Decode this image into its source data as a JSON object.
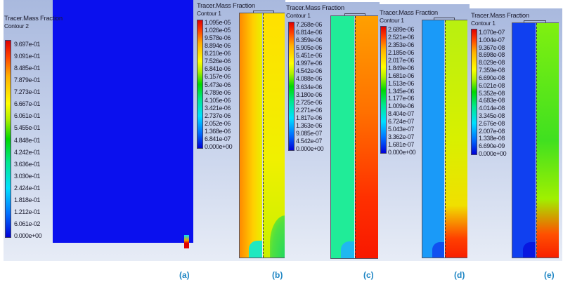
{
  "panels": [
    {
      "id": "a",
      "title": "Tracer.Mass Fraction",
      "contour": "Contour 2",
      "label": "(a)",
      "ticks": [
        "9.697e-01",
        "9.091e-01",
        "8.485e-01",
        "7.879e-01",
        "7.273e-01",
        "6.667e-01",
        "6.061e-01",
        "5.455e-01",
        "4.848e-01",
        "4.242e-01",
        "3.636e-01",
        "3.030e-01",
        "2.424e-01",
        "1.818e-01",
        "1.212e-01",
        "6.061e-02",
        "0.000e+00"
      ]
    },
    {
      "id": "b",
      "title": "Tracer.Mass Fraction",
      "contour": "Contour 1",
      "label": "(b)",
      "ticks": [
        "1.095e-05",
        "1.026e-05",
        "9.578e-06",
        "8.894e-06",
        "8.210e-06",
        "7.526e-06",
        "6.841e-06",
        "6.157e-06",
        "5.473e-06",
        "4.789e-06",
        "4.105e-06",
        "3.421e-06",
        "2.737e-06",
        "2.052e-06",
        "1.368e-06",
        "6.841e-07",
        "0.000e+00"
      ]
    },
    {
      "id": "c",
      "title": "Tracer.Mass Fraction",
      "contour": "Contour 1",
      "label": "(c)",
      "ticks": [
        "7.268e-06",
        "6.814e-06",
        "6.359e-06",
        "5.905e-06",
        "5.451e-06",
        "4.997e-06",
        "4.542e-06",
        "4.088e-06",
        "3.634e-06",
        "3.180e-06",
        "2.725e-06",
        "2.271e-06",
        "1.817e-06",
        "1.363e-06",
        "9.085e-07",
        "4.542e-07",
        "0.000e+00"
      ]
    },
    {
      "id": "d",
      "title": "Tracer.Mass Fraction",
      "contour": "Contour 1",
      "label": "(d)",
      "ticks": [
        "2.689e-06",
        "2.521e-06",
        "2.353e-06",
        "2.185e-06",
        "2.017e-06",
        "1.849e-06",
        "1.681e-06",
        "1.513e-06",
        "1.345e-06",
        "1.177e-06",
        "1.009e-06",
        "8.404e-07",
        "6.724e-07",
        "5.043e-07",
        "3.362e-07",
        "1.681e-07",
        "0.000e+00"
      ]
    },
    {
      "id": "e",
      "title": "Tracer.Mass Fraction",
      "contour": "Contour 1",
      "label": "(e)",
      "ticks": [
        "1.070e-07",
        "1.004e-07",
        "9.367e-08",
        "8.698e-08",
        "8.029e-08",
        "7.359e-08",
        "6.690e-08",
        "6.021e-08",
        "5.352e-08",
        "4.683e-08",
        "4.014e-08",
        "3.345e-08",
        "2.676e-08",
        "2.007e-08",
        "1.338e-08",
        "6.690e-09",
        "0.000e+00"
      ]
    }
  ],
  "colormap": {
    "low": "#0000d8",
    "mid": "#00d800",
    "high": "#e00000"
  },
  "label_color": "#1f86c4"
}
